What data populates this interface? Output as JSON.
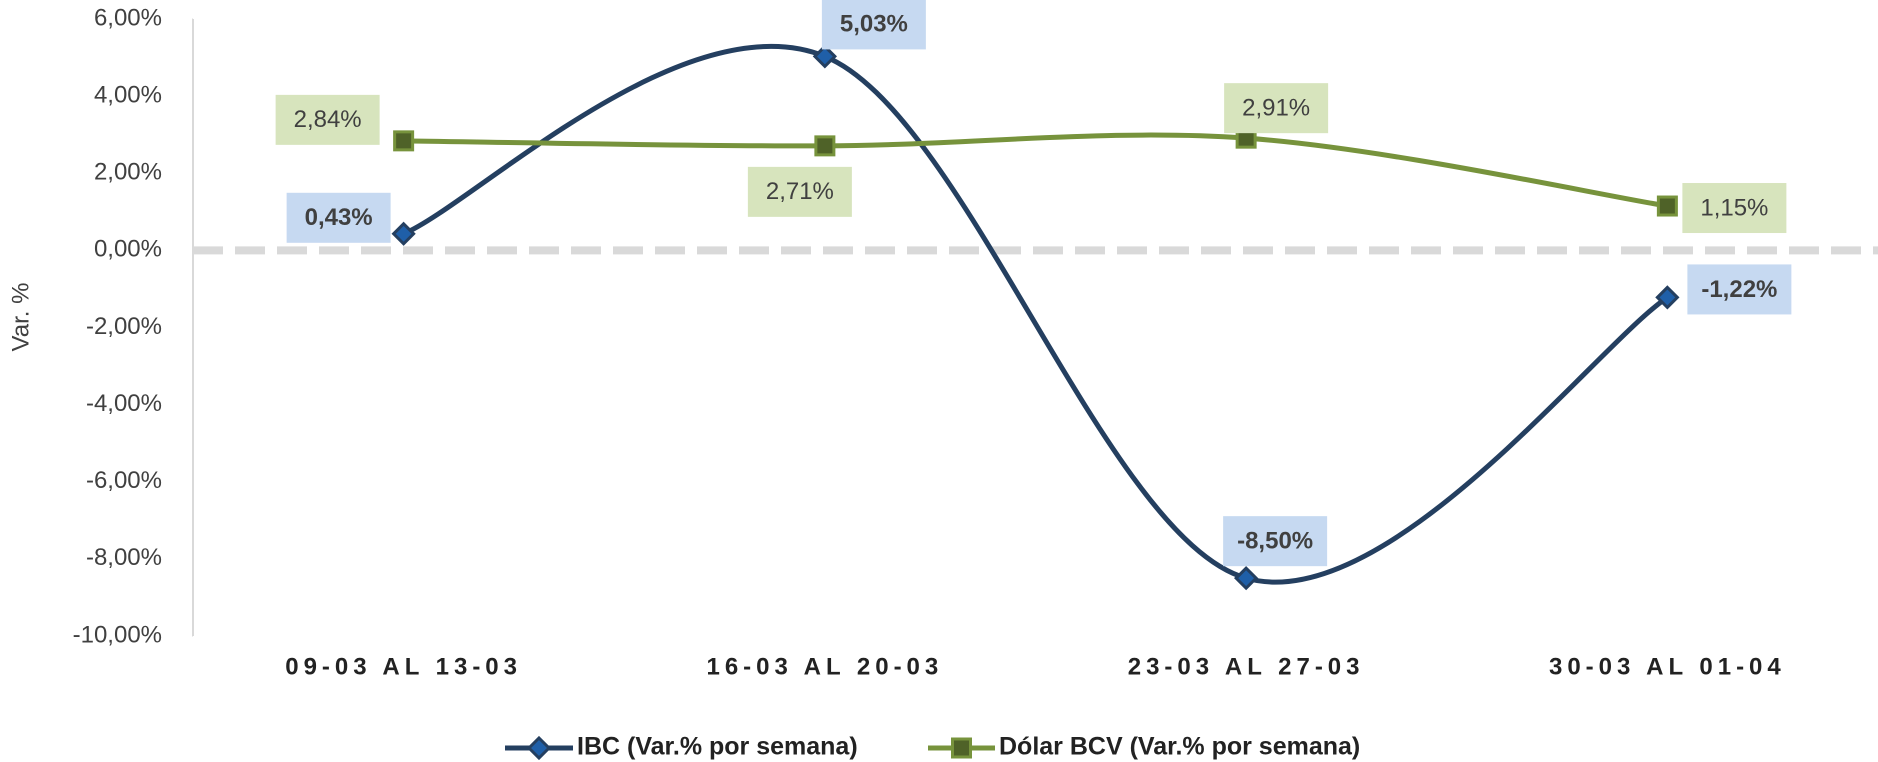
{
  "chart_data": {
    "type": "line",
    "y_label": "Var. %",
    "categories": [
      "09-03 AL 13-03",
      "16-03 AL 20-03",
      "23-03 AL 27-03",
      "30-03 AL 01-04"
    ],
    "series": [
      {
        "name": "IBC (Var.% por semana)",
        "color": "#243f60",
        "marker": "diamond",
        "label_bg": "#c6d9f1",
        "values": [
          0.43,
          5.03,
          -8.5,
          -1.22
        ],
        "value_labels": [
          "0,43%",
          "5,03%",
          "-8,50%",
          "-1,22%"
        ]
      },
      {
        "name": "Dólar BCV (Var.% por semana)",
        "color": "#77933c",
        "marker": "square",
        "label_bg": "#d7e4bd",
        "values": [
          2.84,
          2.71,
          2.91,
          1.15
        ],
        "value_labels": [
          "2,84%",
          "2,71%",
          "2,91%",
          "1,15%"
        ]
      }
    ],
    "ylim": [
      -10,
      6
    ],
    "yticks": [
      {
        "value": -10,
        "label": "-10,00%"
      },
      {
        "value": -8,
        "label": "-8,00%"
      },
      {
        "value": -6,
        "label": "-6,00%"
      },
      {
        "value": -4,
        "label": "-4,00%"
      },
      {
        "value": -2,
        "label": "-2,00%"
      },
      {
        "value": 0,
        "label": "0,00%"
      },
      {
        "value": 2,
        "label": "2,00%"
      },
      {
        "value": 4,
        "label": "4,00%"
      },
      {
        "value": 6,
        "label": "6,00%"
      }
    ],
    "legend": "bottom"
  }
}
